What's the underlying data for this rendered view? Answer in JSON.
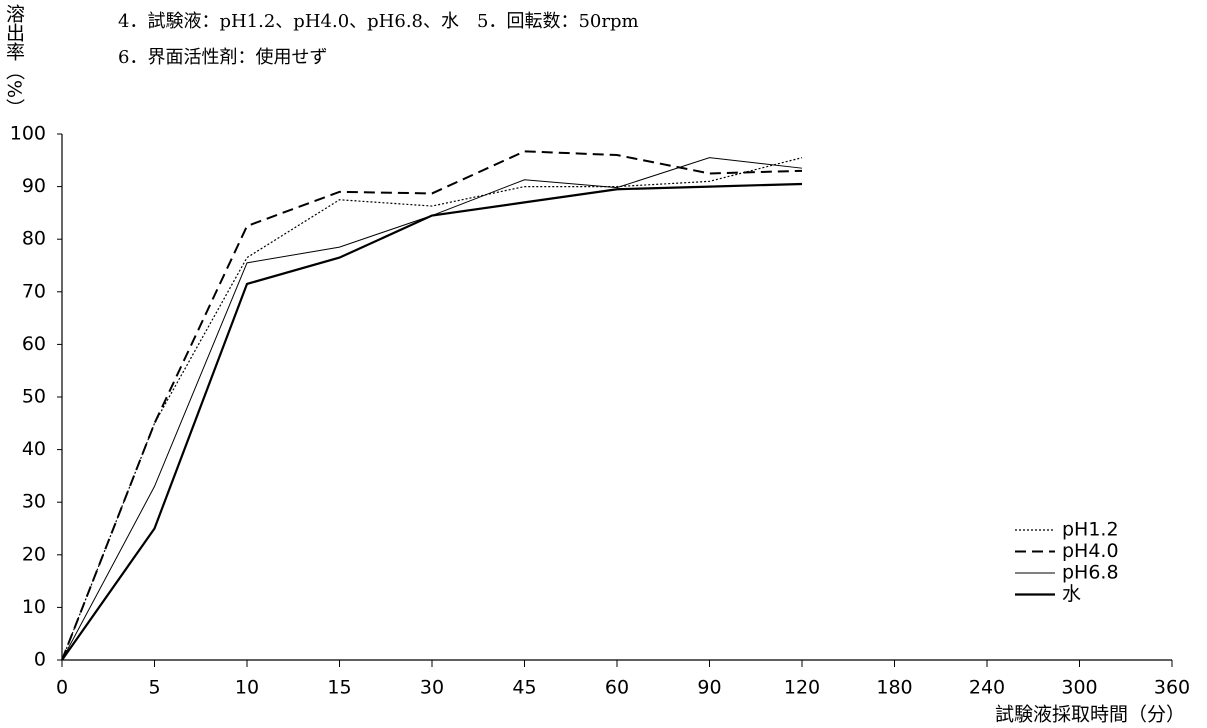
{
  "chart_data": {
    "type": "line",
    "header": [
      "4．試験液：pH1.2、pH4.0、pH6.8、水　5．回転数：50rpm",
      "6．界面活性剤：使用せず"
    ],
    "y_label": "溶出率（%）",
    "x_label": "試験液採取時間（分）",
    "categories": [
      "0",
      "5",
      "10",
      "15",
      "30",
      "45",
      "60",
      "90",
      "120",
      "180",
      "240",
      "300",
      "360"
    ],
    "ylim": [
      0,
      100
    ],
    "yticks": [
      0,
      10,
      20,
      30,
      40,
      50,
      60,
      70,
      80,
      90,
      100
    ],
    "grid": false,
    "legend": "lower-right",
    "series": [
      {
        "name": "pH1.2",
        "color": "#000000",
        "line_style": "dotted",
        "values": [
          0,
          45,
          76.5,
          87.5,
          86.3,
          90,
          90,
          91,
          95.5,
          null,
          null,
          null,
          null
        ]
      },
      {
        "name": "pH4.0",
        "color": "#000000",
        "line_style": "dashed",
        "values": [
          0,
          45,
          82.5,
          89,
          88.7,
          96.7,
          96,
          92.5,
          93,
          null,
          null,
          null,
          null
        ]
      },
      {
        "name": "pH6.8",
        "color": "#000000",
        "line_style": "thin",
        "values": [
          0,
          33,
          75.5,
          78.5,
          84.5,
          91.3,
          89.8,
          95.5,
          93.5,
          null,
          null,
          null,
          null
        ]
      },
      {
        "name": "水",
        "color": "#000000",
        "line_style": "thick",
        "values": [
          0,
          25,
          71.5,
          76.5,
          84.5,
          87,
          89.5,
          90,
          90.5,
          null,
          null,
          null,
          null
        ]
      }
    ]
  }
}
